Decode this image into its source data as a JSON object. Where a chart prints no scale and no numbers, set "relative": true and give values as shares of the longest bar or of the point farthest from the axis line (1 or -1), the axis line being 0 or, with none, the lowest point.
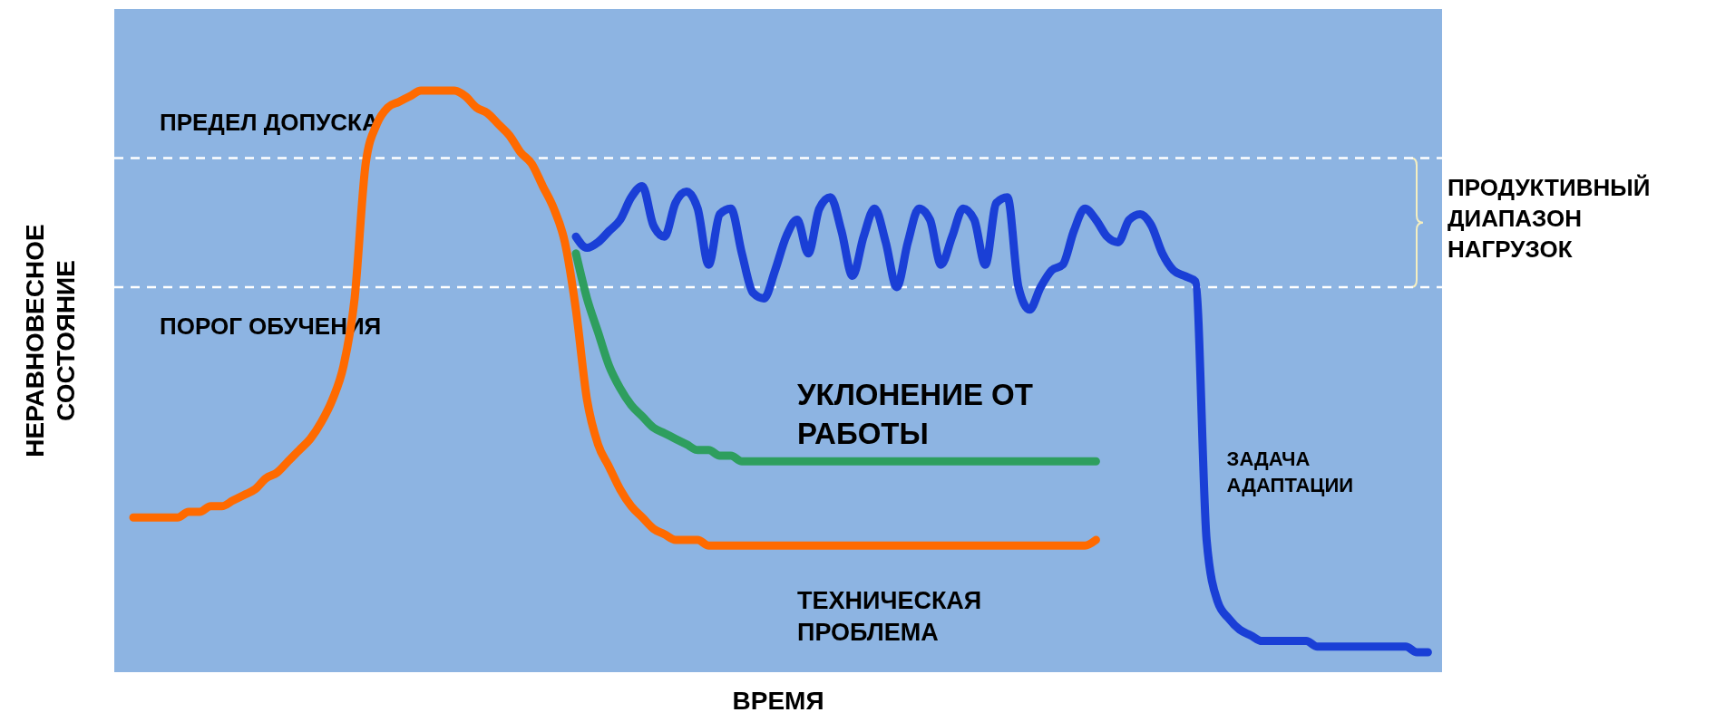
{
  "chart_data": {
    "type": "line",
    "relative": true,
    "xlabel": "ВРЕМЯ",
    "ylabel": "НЕРАВНОВЕСНОЕ СОСТОЯНИЕ",
    "grid": false,
    "line_style": "solid",
    "annotations": [
      "ПРОДУКТИВНЫЙ ДИАПАЗОН НАГРУЗОК"
    ],
    "categories": [
      null,
      null,
      null,
      null,
      null,
      null,
      null,
      null,
      null,
      null,
      null,
      null,
      null,
      null,
      null,
      null,
      null,
      null,
      null,
      null,
      null,
      null,
      null,
      null,
      null,
      null,
      null,
      null,
      null,
      null,
      null,
      null,
      null,
      null,
      null,
      null,
      null,
      null,
      null,
      null,
      null,
      null,
      null,
      null,
      null,
      null,
      null,
      null,
      null,
      null,
      null,
      null,
      null,
      null,
      null,
      null,
      null,
      null,
      null,
      null,
      null,
      null,
      null,
      null,
      null,
      null,
      null,
      null,
      null,
      null,
      null,
      null,
      null,
      null,
      null,
      null,
      null,
      null,
      null,
      null,
      null,
      null,
      null,
      null,
      null,
      null,
      null,
      null,
      null,
      null,
      null,
      null,
      null,
      null,
      null,
      null,
      null,
      null,
      null,
      null,
      null,
      null,
      null,
      null,
      null,
      null,
      null,
      null,
      null,
      null,
      null,
      null,
      null,
      null,
      null,
      null,
      null,
      null
    ],
    "series": [
      {
        "name": "ТЕХНИЧЕСКАЯ ПРОБЛЕМА",
        "color": "#ff6a00",
        "values": [
          0.24,
          0.24,
          0.24,
          0.24,
          0.24,
          0.25,
          0.25,
          0.26,
          0.26,
          0.27,
          0.28,
          0.29,
          0.31,
          0.32,
          0.34,
          0.36,
          0.38,
          0.41,
          0.45,
          0.51,
          0.63,
          0.87,
          0.94,
          0.97,
          0.98,
          0.99,
          1,
          1,
          1,
          1,
          0.99,
          0.97,
          0.96,
          0.94,
          0.92,
          0.89,
          0.87,
          0.83,
          0.79,
          0.73,
          0.61,
          0.45,
          0.37,
          0.33,
          0.29,
          0.26,
          0.24,
          0.22,
          0.21,
          0.2,
          0.2,
          0.2,
          0.19,
          0.19,
          0.19,
          0.19,
          0.19,
          0.19,
          0.19,
          0.19,
          0.19,
          0.19,
          0.19,
          0.19,
          0.19,
          0.19,
          0.19,
          0.19,
          0.19,
          0.19,
          0.19,
          0.19,
          0.19,
          0.19,
          0.19,
          0.19,
          0.19,
          0.19,
          0.19,
          0.19,
          0.19,
          0.19,
          0.19,
          0.19,
          0.19,
          0.19,
          0.19,
          0.2,
          null,
          null,
          null,
          null,
          null,
          null,
          null,
          null,
          null,
          null,
          null,
          null,
          null,
          null,
          null,
          null,
          null,
          null,
          null,
          null,
          null,
          null,
          null,
          null,
          null,
          null,
          null,
          null,
          null,
          null
        ]
      },
      {
        "name": "УКЛОНЕНИЕ ОТ РАБОТЫ",
        "color": "#2e9e5e",
        "values": [
          null,
          null,
          null,
          null,
          null,
          null,
          null,
          null,
          null,
          null,
          null,
          null,
          null,
          null,
          null,
          null,
          null,
          null,
          null,
          null,
          null,
          null,
          null,
          null,
          null,
          null,
          null,
          null,
          null,
          null,
          null,
          null,
          null,
          null,
          null,
          null,
          null,
          null,
          null,
          null,
          0.71,
          0.63,
          0.57,
          0.51,
          0.47,
          0.44,
          0.42,
          0.4,
          0.39,
          0.38,
          0.37,
          0.36,
          0.36,
          0.35,
          0.35,
          0.34,
          0.34,
          0.34,
          0.34,
          0.34,
          0.34,
          0.34,
          0.34,
          0.34,
          0.34,
          0.34,
          0.34,
          0.34,
          0.34,
          0.34,
          0.34,
          0.34,
          0.34,
          0.34,
          0.34,
          0.34,
          0.34,
          0.34,
          0.34,
          0.34,
          0.34,
          0.34,
          0.34,
          0.34,
          0.34,
          0.34,
          0.34,
          0.34,
          null,
          null,
          null,
          null,
          null,
          null,
          null,
          null,
          null,
          null,
          null,
          null,
          null,
          null,
          null,
          null,
          null,
          null,
          null,
          null,
          null,
          null,
          null,
          null,
          null,
          null,
          null,
          null,
          null,
          null
        ]
      },
      {
        "name": "ЗАДАЧА АДАПТАЦИИ",
        "color": "#1a3fd6",
        "values": [
          null,
          null,
          null,
          null,
          null,
          null,
          null,
          null,
          null,
          null,
          null,
          null,
          null,
          null,
          null,
          null,
          null,
          null,
          null,
          null,
          null,
          null,
          null,
          null,
          null,
          null,
          null,
          null,
          null,
          null,
          null,
          null,
          null,
          null,
          null,
          null,
          null,
          null,
          null,
          null,
          0.74,
          0.72,
          0.73,
          0.75,
          0.77,
          0.81,
          0.83,
          0.76,
          0.74,
          0.8,
          0.82,
          0.79,
          0.69,
          0.78,
          0.79,
          0.71,
          0.64,
          0.63,
          0.68,
          0.74,
          0.77,
          0.71,
          0.79,
          0.81,
          0.75,
          0.67,
          0.74,
          0.79,
          0.73,
          0.65,
          0.73,
          0.79,
          0.77,
          0.69,
          0.74,
          0.79,
          0.77,
          0.69,
          0.8,
          0.81,
          0.65,
          0.61,
          0.65,
          0.68,
          0.69,
          0.75,
          0.79,
          0.77,
          0.74,
          0.73,
          0.77,
          0.78,
          0.76,
          0.71,
          0.68,
          0.67,
          0.66,
          0.2,
          0.09,
          0.06,
          0.04,
          0.03,
          0.02,
          0.02,
          0.02,
          0.02,
          0.02,
          0.01,
          0.01,
          0.01,
          0.01,
          0.01,
          0.01,
          0.01,
          0.01,
          0.01,
          0,
          0
        ]
      }
    ],
    "ref_lines": [
      {
        "axis": "y",
        "value": 0.88,
        "label": "ПРЕДЕЛ ДОПУСКА",
        "color": "#ffffff",
        "line_style": "dashed"
      },
      {
        "axis": "y",
        "value": 0.65,
        "label": "ПОРОГ ОБУЧЕНИЯ",
        "color": "#ffffff",
        "line_style": "dashed"
      }
    ]
  }
}
